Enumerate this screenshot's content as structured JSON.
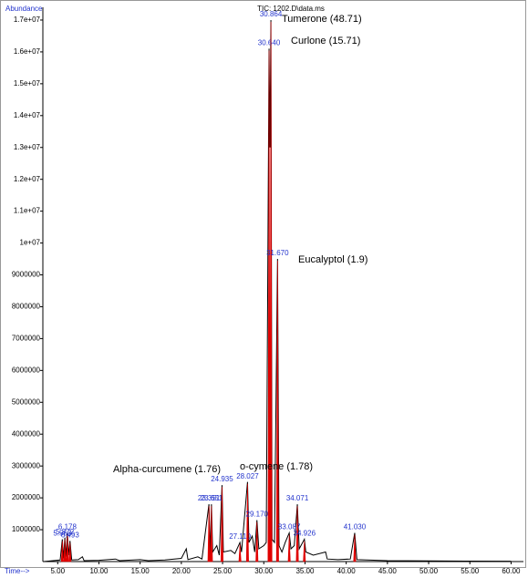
{
  "chart_data": {
    "type": "line",
    "title": "TIC: 1202.D\\data.ms",
    "y_label": "Abundance",
    "x_label": "Time-->",
    "xlim": [
      3.2,
      61.5
    ],
    "ylim": [
      0,
      17400000
    ],
    "xticks": [
      {
        "value": 5,
        "label": "5.00"
      },
      {
        "value": 10,
        "label": "10.00"
      },
      {
        "value": 15,
        "label": "15.00"
      },
      {
        "value": 20,
        "label": "20.00"
      },
      {
        "value": 25,
        "label": "25.00"
      },
      {
        "value": 30,
        "label": "30.00"
      },
      {
        "value": 35,
        "label": "35.00"
      },
      {
        "value": 40,
        "label": "40.00"
      },
      {
        "value": 45,
        "label": "45.00"
      },
      {
        "value": 50,
        "label": "50.00"
      },
      {
        "value": 55,
        "label": "55.00"
      },
      {
        "value": 60,
        "label": "60.00"
      }
    ],
    "yticks": [
      1000000,
      2000000,
      3000000,
      4000000,
      5000000,
      6000000,
      7000000,
      8000000,
      9000000,
      {
        "value": 10000000,
        "label": "1e+07"
      },
      {
        "value": 11000000,
        "label": "1.1e+07"
      },
      {
        "value": 12000000,
        "label": "1.2e+07"
      },
      {
        "value": 13000000,
        "label": "1.3e+07"
      },
      {
        "value": 14000000,
        "label": "1.4e+07"
      },
      {
        "value": 15000000,
        "label": "1.5e+07"
      },
      {
        "value": 16000000,
        "label": "1.6e+07"
      },
      {
        "value": 17000000,
        "label": "1.7e+07"
      }
    ],
    "series": [
      {
        "color": "#000000",
        "x": [
          3.3,
          5.3,
          5.56,
          5.7,
          5.87,
          6.0,
          6.18,
          6.3,
          6.49,
          6.7,
          7.5,
          8.0,
          8.2,
          10,
          12,
          12.5,
          15,
          16,
          18,
          20,
          20.6,
          20.8,
          22,
          22.5,
          23.35,
          23.5,
          23.65,
          23.8,
          24.3,
          24.6,
          24.935,
          25.1,
          26,
          26.5,
          27.11,
          27.3,
          28.027,
          28.2,
          28.6,
          28.9,
          29.17,
          29.4,
          30,
          30.3,
          30.64,
          30.75,
          30.864,
          31.0,
          31.3,
          31.67,
          31.85,
          32.2,
          32.6,
          33.087,
          33.3,
          33.7,
          34.071,
          34.3,
          34.926,
          35.1,
          36,
          37.5,
          37.7,
          39,
          40.5,
          41.03,
          41.3,
          45,
          50,
          60
        ],
        "values": [
          0,
          50000,
          700000,
          100000,
          750000,
          150000,
          900000,
          200000,
          650000,
          50000,
          60000,
          150000,
          30000,
          40000,
          80000,
          30000,
          60000,
          30000,
          50000,
          100000,
          400000,
          60000,
          150000,
          80000,
          1800000,
          200000,
          1800000,
          300000,
          500000,
          200000,
          2400000,
          300000,
          350000,
          250000,
          600000,
          300000,
          2500000,
          600000,
          800000,
          300000,
          1300000,
          400000,
          500000,
          600000,
          16100000,
          13000000,
          17000000,
          700000,
          600000,
          9500000,
          500000,
          300000,
          600000,
          900000,
          400000,
          500000,
          1800000,
          400000,
          700000,
          300000,
          200000,
          300000,
          80000,
          60000,
          80000,
          900000,
          60000,
          30000,
          20000,
          10000
        ]
      }
    ],
    "integration_color": "#e00000",
    "peaks": [
      {
        "rt": {
          "value": 5.563,
          "label": "5.563"
        },
        "abundance": 700000
      },
      {
        "rt": {
          "value": 5.872,
          "label": "5.872"
        },
        "abundance": 750000
      },
      {
        "rt": {
          "value": 6.178,
          "label": "6.178"
        },
        "abundance": 900000
      },
      {
        "rt": {
          "value": 6.493,
          "label": "6.493"
        },
        "abundance": 650000
      },
      {
        "rt": {
          "value": 23.351,
          "label": "23.351"
        },
        "abundance": 1800000
      },
      {
        "rt": {
          "value": 23.651,
          "label": "23.651"
        },
        "abundance": 1800000
      },
      {
        "rt": {
          "value": 24.935,
          "label": "24.935"
        },
        "abundance": 2400000
      },
      {
        "rt": {
          "value": 27.11,
          "label": "27.110"
        },
        "abundance": 600000
      },
      {
        "rt": {
          "value": 28.027,
          "label": "28.027"
        },
        "abundance": 2500000
      },
      {
        "rt": {
          "value": 29.17,
          "label": "29.170"
        },
        "abundance": 1300000
      },
      {
        "rt": {
          "value": 30.64,
          "label": "30.640"
        },
        "abundance": 16100000
      },
      {
        "rt": {
          "value": 30.864,
          "label": "30.864"
        },
        "abundance": 17000000
      },
      {
        "rt": {
          "value": 31.67,
          "label": "31.670"
        },
        "abundance": 9500000
      },
      {
        "rt": {
          "value": 33.087,
          "label": "33.087"
        },
        "abundance": 900000
      },
      {
        "rt": {
          "value": 34.071,
          "label": "34.071"
        },
        "abundance": 1800000
      },
      {
        "rt": {
          "value": 34.926,
          "label": "34.926"
        },
        "abundance": 700000
      },
      {
        "rt": {
          "value": 41.03,
          "label": "41.030"
        },
        "abundance": 900000
      }
    ],
    "annotations": [
      "Tumerone (48.71)",
      "Curlone (15.71)",
      "Eucalyptol (1.9)",
      "Alpha-curcumene (1.76)",
      "o-cymene (1.78)"
    ]
  }
}
